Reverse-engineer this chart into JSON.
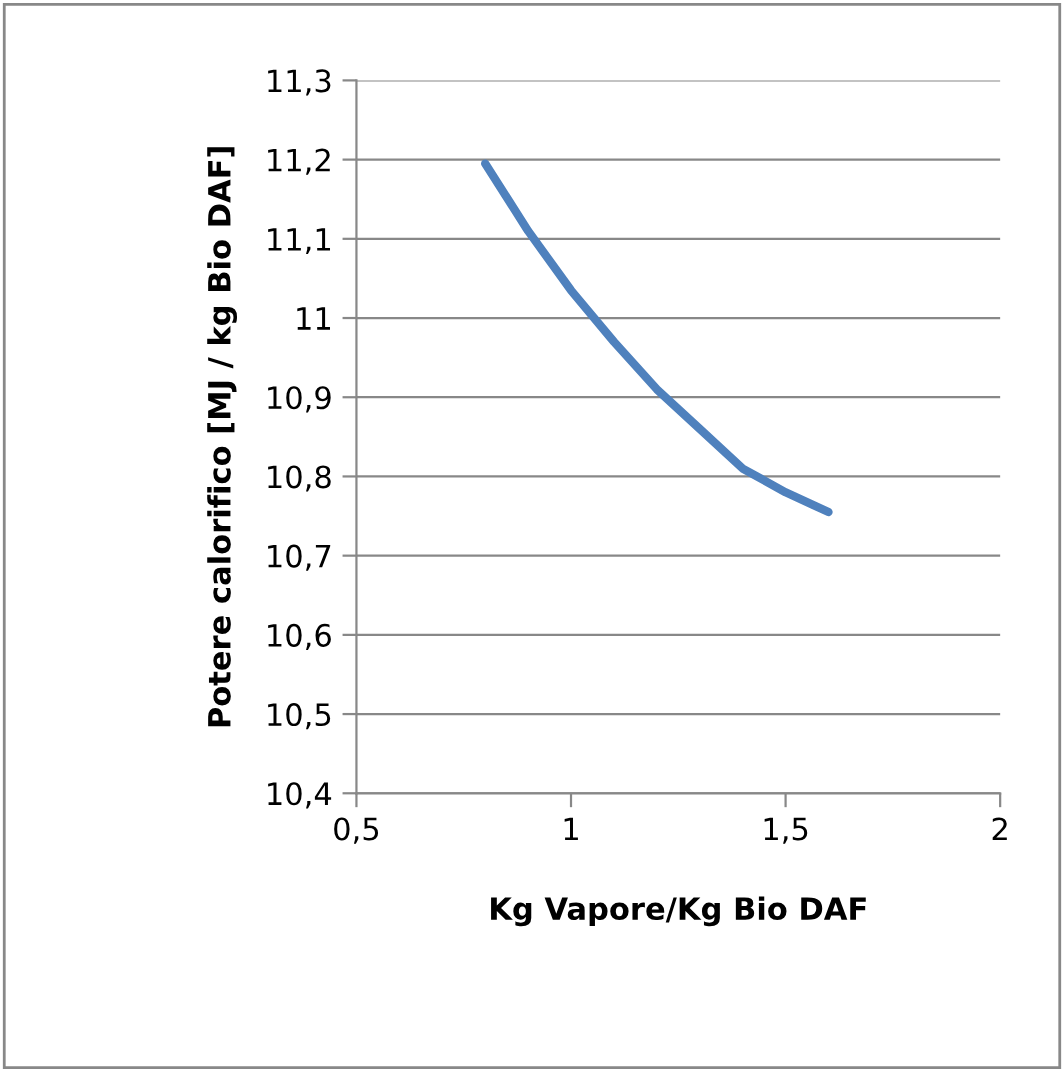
{
  "chart_data": {
    "type": "line",
    "xlabel": "Kg Vapore/Kg Bio DAF",
    "ylabel": "Potere calorifico [MJ / kg Bio DAF]",
    "x": [
      0.8,
      0.9,
      1.0,
      1.1,
      1.2,
      1.3,
      1.4,
      1.5,
      1.6
    ],
    "series": [
      {
        "color": "#4f81bd",
        "values": [
          11.195,
          11.11,
          11.035,
          10.97,
          10.91,
          10.86,
          10.81,
          10.78,
          10.755
        ]
      }
    ],
    "xlim": [
      0.5,
      2
    ],
    "xticks": [
      {
        "value": 0.5,
        "label": "0,5"
      },
      1,
      {
        "value": 1.5,
        "label": "1,5"
      },
      2
    ],
    "ylim": [
      10.4,
      11.3
    ],
    "yticks": [
      {
        "value": 10.4,
        "label": "10,4"
      },
      {
        "value": 10.5,
        "label": "10,5"
      },
      {
        "value": 10.6,
        "label": "10,6"
      },
      {
        "value": 10.7,
        "label": "10,7"
      },
      {
        "value": 10.8,
        "label": "10,8"
      },
      {
        "value": 10.9,
        "label": "10,9"
      },
      11,
      {
        "value": 11.1,
        "label": "11,1"
      },
      {
        "value": 11.2,
        "label": "11,2"
      },
      {
        "value": 11.3,
        "label": "11,3"
      }
    ],
    "grid": "y",
    "marker": "none",
    "line_style": "solid",
    "legend": false
  }
}
